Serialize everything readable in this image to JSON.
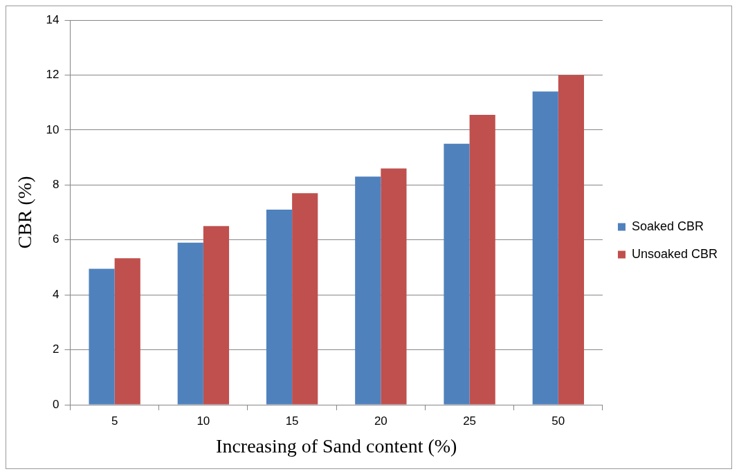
{
  "chart_data": {
    "type": "bar",
    "xlabel": "Increasing of Sand content (%)",
    "ylabel": "CBR (%)",
    "categories": [
      "5",
      "10",
      "15",
      "20",
      "25",
      "50"
    ],
    "series": [
      {
        "name": "Soaked CBR",
        "color": "#4f81bd",
        "values": [
          4.95,
          5.9,
          7.1,
          8.3,
          9.5,
          11.4
        ]
      },
      {
        "name": "Unsoaked CBR",
        "color": "#c0504d",
        "values": [
          5.33,
          6.5,
          7.7,
          8.6,
          10.55,
          12.0
        ]
      }
    ],
    "ylim": [
      0,
      14
    ],
    "yticks": [
      0,
      2,
      4,
      6,
      8,
      10,
      12,
      14
    ],
    "grid": "y",
    "legend": "right"
  }
}
